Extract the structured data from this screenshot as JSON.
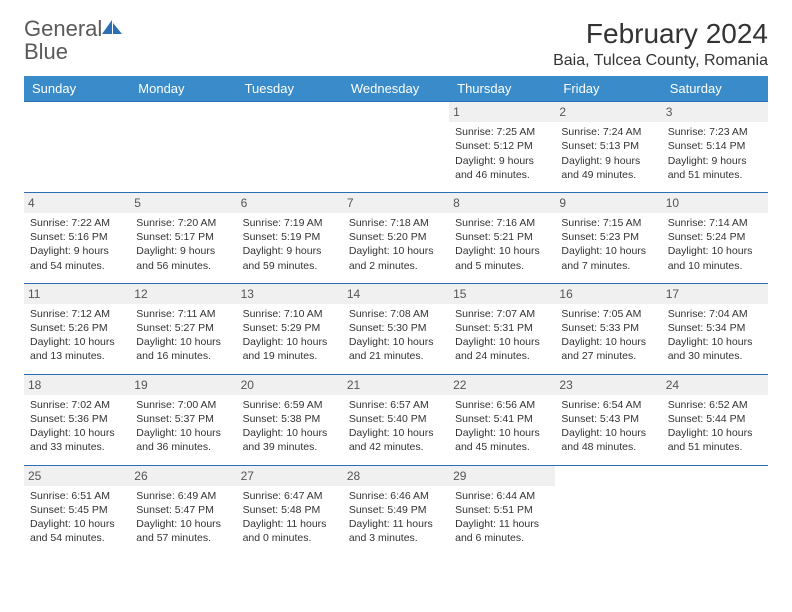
{
  "logo": {
    "general": "General",
    "blue": "Blue"
  },
  "header": {
    "title": "February 2024",
    "location": "Baia, Tulcea County, Romania"
  },
  "columns": [
    "Sunday",
    "Monday",
    "Tuesday",
    "Wednesday",
    "Thursday",
    "Friday",
    "Saturday"
  ],
  "colors": {
    "header_bg": "#3a8bc9",
    "header_text": "#ffffff",
    "border": "#2d6fb4",
    "daynum_bg": "#f0f0f0"
  },
  "weeks": [
    [
      {
        "empty": true
      },
      {
        "empty": true
      },
      {
        "empty": true
      },
      {
        "empty": true
      },
      {
        "day": "1",
        "sunrise": "Sunrise: 7:25 AM",
        "sunset": "Sunset: 5:12 PM",
        "daylight": "Daylight: 9 hours and 46 minutes."
      },
      {
        "day": "2",
        "sunrise": "Sunrise: 7:24 AM",
        "sunset": "Sunset: 5:13 PM",
        "daylight": "Daylight: 9 hours and 49 minutes."
      },
      {
        "day": "3",
        "sunrise": "Sunrise: 7:23 AM",
        "sunset": "Sunset: 5:14 PM",
        "daylight": "Daylight: 9 hours and 51 minutes."
      }
    ],
    [
      {
        "day": "4",
        "sunrise": "Sunrise: 7:22 AM",
        "sunset": "Sunset: 5:16 PM",
        "daylight": "Daylight: 9 hours and 54 minutes."
      },
      {
        "day": "5",
        "sunrise": "Sunrise: 7:20 AM",
        "sunset": "Sunset: 5:17 PM",
        "daylight": "Daylight: 9 hours and 56 minutes."
      },
      {
        "day": "6",
        "sunrise": "Sunrise: 7:19 AM",
        "sunset": "Sunset: 5:19 PM",
        "daylight": "Daylight: 9 hours and 59 minutes."
      },
      {
        "day": "7",
        "sunrise": "Sunrise: 7:18 AM",
        "sunset": "Sunset: 5:20 PM",
        "daylight": "Daylight: 10 hours and 2 minutes."
      },
      {
        "day": "8",
        "sunrise": "Sunrise: 7:16 AM",
        "sunset": "Sunset: 5:21 PM",
        "daylight": "Daylight: 10 hours and 5 minutes."
      },
      {
        "day": "9",
        "sunrise": "Sunrise: 7:15 AM",
        "sunset": "Sunset: 5:23 PM",
        "daylight": "Daylight: 10 hours and 7 minutes."
      },
      {
        "day": "10",
        "sunrise": "Sunrise: 7:14 AM",
        "sunset": "Sunset: 5:24 PM",
        "daylight": "Daylight: 10 hours and 10 minutes."
      }
    ],
    [
      {
        "day": "11",
        "sunrise": "Sunrise: 7:12 AM",
        "sunset": "Sunset: 5:26 PM",
        "daylight": "Daylight: 10 hours and 13 minutes."
      },
      {
        "day": "12",
        "sunrise": "Sunrise: 7:11 AM",
        "sunset": "Sunset: 5:27 PM",
        "daylight": "Daylight: 10 hours and 16 minutes."
      },
      {
        "day": "13",
        "sunrise": "Sunrise: 7:10 AM",
        "sunset": "Sunset: 5:29 PM",
        "daylight": "Daylight: 10 hours and 19 minutes."
      },
      {
        "day": "14",
        "sunrise": "Sunrise: 7:08 AM",
        "sunset": "Sunset: 5:30 PM",
        "daylight": "Daylight: 10 hours and 21 minutes."
      },
      {
        "day": "15",
        "sunrise": "Sunrise: 7:07 AM",
        "sunset": "Sunset: 5:31 PM",
        "daylight": "Daylight: 10 hours and 24 minutes."
      },
      {
        "day": "16",
        "sunrise": "Sunrise: 7:05 AM",
        "sunset": "Sunset: 5:33 PM",
        "daylight": "Daylight: 10 hours and 27 minutes."
      },
      {
        "day": "17",
        "sunrise": "Sunrise: 7:04 AM",
        "sunset": "Sunset: 5:34 PM",
        "daylight": "Daylight: 10 hours and 30 minutes."
      }
    ],
    [
      {
        "day": "18",
        "sunrise": "Sunrise: 7:02 AM",
        "sunset": "Sunset: 5:36 PM",
        "daylight": "Daylight: 10 hours and 33 minutes."
      },
      {
        "day": "19",
        "sunrise": "Sunrise: 7:00 AM",
        "sunset": "Sunset: 5:37 PM",
        "daylight": "Daylight: 10 hours and 36 minutes."
      },
      {
        "day": "20",
        "sunrise": "Sunrise: 6:59 AM",
        "sunset": "Sunset: 5:38 PM",
        "daylight": "Daylight: 10 hours and 39 minutes."
      },
      {
        "day": "21",
        "sunrise": "Sunrise: 6:57 AM",
        "sunset": "Sunset: 5:40 PM",
        "daylight": "Daylight: 10 hours and 42 minutes."
      },
      {
        "day": "22",
        "sunrise": "Sunrise: 6:56 AM",
        "sunset": "Sunset: 5:41 PM",
        "daylight": "Daylight: 10 hours and 45 minutes."
      },
      {
        "day": "23",
        "sunrise": "Sunrise: 6:54 AM",
        "sunset": "Sunset: 5:43 PM",
        "daylight": "Daylight: 10 hours and 48 minutes."
      },
      {
        "day": "24",
        "sunrise": "Sunrise: 6:52 AM",
        "sunset": "Sunset: 5:44 PM",
        "daylight": "Daylight: 10 hours and 51 minutes."
      }
    ],
    [
      {
        "day": "25",
        "sunrise": "Sunrise: 6:51 AM",
        "sunset": "Sunset: 5:45 PM",
        "daylight": "Daylight: 10 hours and 54 minutes."
      },
      {
        "day": "26",
        "sunrise": "Sunrise: 6:49 AM",
        "sunset": "Sunset: 5:47 PM",
        "daylight": "Daylight: 10 hours and 57 minutes."
      },
      {
        "day": "27",
        "sunrise": "Sunrise: 6:47 AM",
        "sunset": "Sunset: 5:48 PM",
        "daylight": "Daylight: 11 hours and 0 minutes."
      },
      {
        "day": "28",
        "sunrise": "Sunrise: 6:46 AM",
        "sunset": "Sunset: 5:49 PM",
        "daylight": "Daylight: 11 hours and 3 minutes."
      },
      {
        "day": "29",
        "sunrise": "Sunrise: 6:44 AM",
        "sunset": "Sunset: 5:51 PM",
        "daylight": "Daylight: 11 hours and 6 minutes."
      },
      {
        "empty": true
      },
      {
        "empty": true
      }
    ]
  ]
}
